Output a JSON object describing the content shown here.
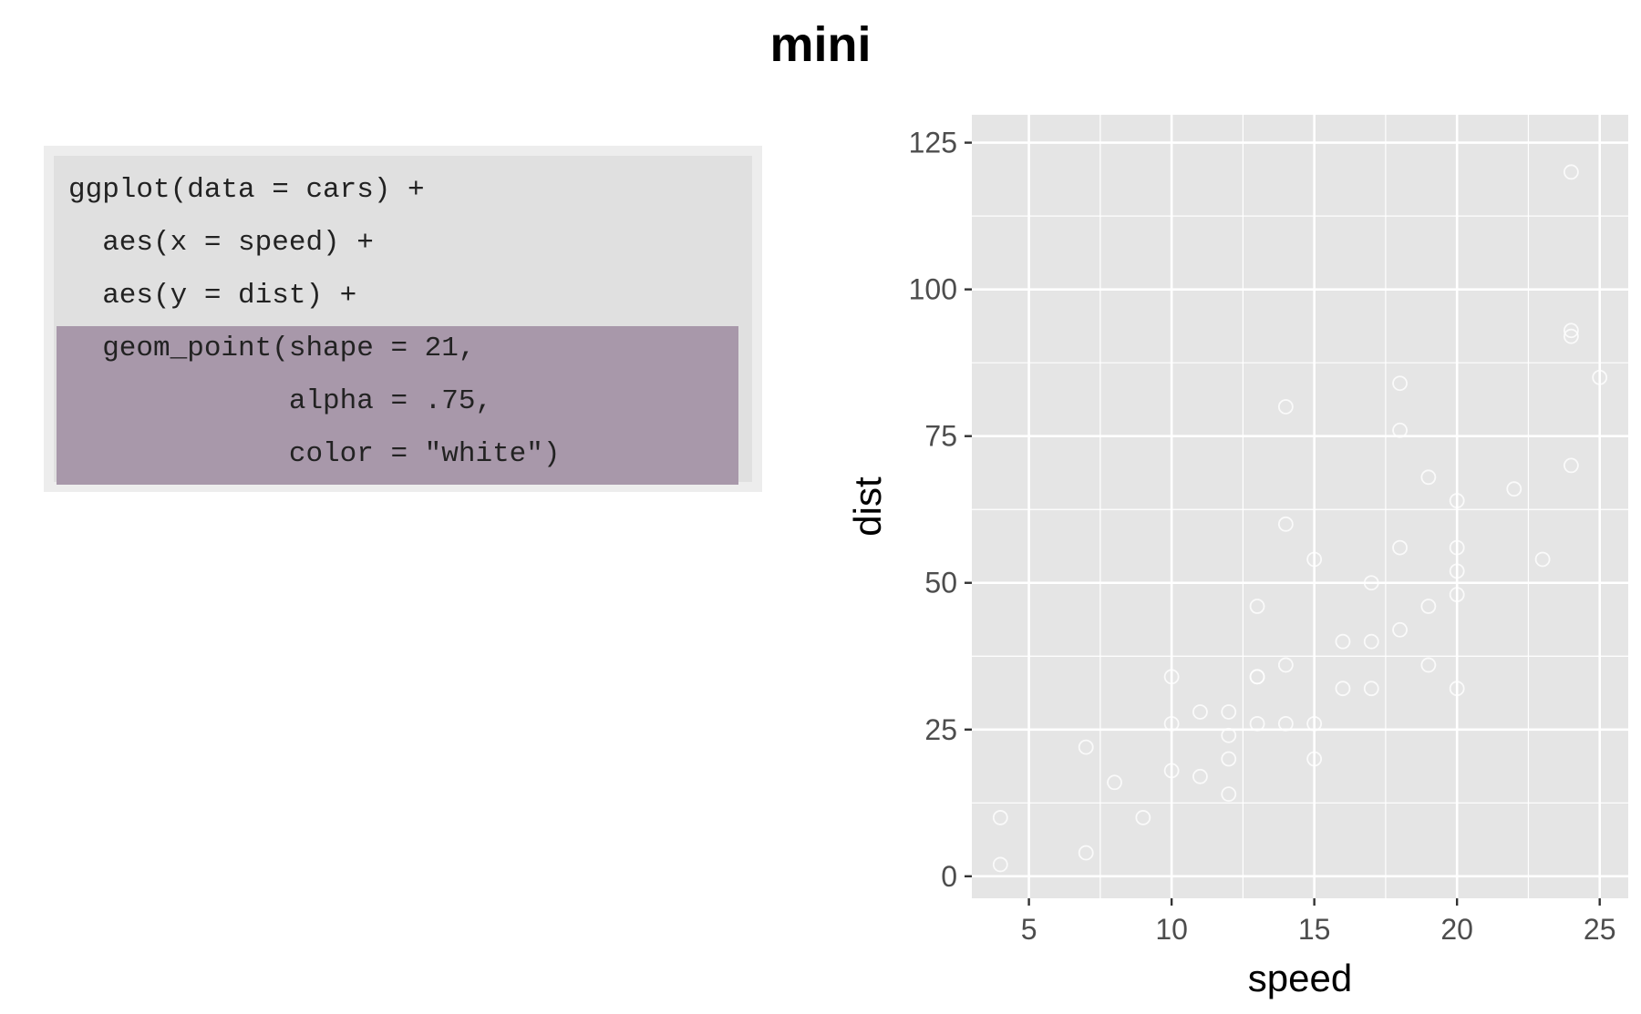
{
  "title": "mini",
  "code": {
    "lines": [
      "ggplot(data = cars) +",
      "  aes(x = speed) +",
      "  aes(y = dist) +",
      "  geom_point(shape = 21,",
      "             alpha = .75,",
      "             color = \"white\")"
    ],
    "highlighted_lines": [
      3,
      4,
      5
    ],
    "highlight_color": "#a898aa"
  },
  "chart_data": {
    "type": "scatter",
    "xlabel": "speed",
    "ylabel": "dist",
    "xlim": [
      3.0,
      26.0
    ],
    "ylim": [
      -3.75,
      129.75
    ],
    "x_ticks": [
      5,
      10,
      15,
      20,
      25
    ],
    "y_ticks": [
      0,
      25,
      50,
      75,
      100,
      125
    ],
    "panel_background": "#e5e5e5",
    "grid_color": "#ffffff",
    "point_color": "#ffffff",
    "point_shape": "open-circle",
    "points": [
      {
        "x": 4,
        "y": 2
      },
      {
        "x": 4,
        "y": 10
      },
      {
        "x": 7,
        "y": 4
      },
      {
        "x": 7,
        "y": 22
      },
      {
        "x": 8,
        "y": 16
      },
      {
        "x": 9,
        "y": 10
      },
      {
        "x": 10,
        "y": 18
      },
      {
        "x": 10,
        "y": 26
      },
      {
        "x": 10,
        "y": 34
      },
      {
        "x": 11,
        "y": 17
      },
      {
        "x": 11,
        "y": 28
      },
      {
        "x": 12,
        "y": 14
      },
      {
        "x": 12,
        "y": 20
      },
      {
        "x": 12,
        "y": 24
      },
      {
        "x": 12,
        "y": 28
      },
      {
        "x": 13,
        "y": 26
      },
      {
        "x": 13,
        "y": 34
      },
      {
        "x": 13,
        "y": 34
      },
      {
        "x": 13,
        "y": 46
      },
      {
        "x": 14,
        "y": 26
      },
      {
        "x": 14,
        "y": 36
      },
      {
        "x": 14,
        "y": 60
      },
      {
        "x": 14,
        "y": 80
      },
      {
        "x": 15,
        "y": 20
      },
      {
        "x": 15,
        "y": 26
      },
      {
        "x": 15,
        "y": 54
      },
      {
        "x": 16,
        "y": 32
      },
      {
        "x": 16,
        "y": 40
      },
      {
        "x": 17,
        "y": 32
      },
      {
        "x": 17,
        "y": 40
      },
      {
        "x": 17,
        "y": 50
      },
      {
        "x": 18,
        "y": 42
      },
      {
        "x": 18,
        "y": 56
      },
      {
        "x": 18,
        "y": 76
      },
      {
        "x": 18,
        "y": 84
      },
      {
        "x": 19,
        "y": 36
      },
      {
        "x": 19,
        "y": 46
      },
      {
        "x": 19,
        "y": 68
      },
      {
        "x": 20,
        "y": 32
      },
      {
        "x": 20,
        "y": 48
      },
      {
        "x": 20,
        "y": 52
      },
      {
        "x": 20,
        "y": 56
      },
      {
        "x": 20,
        "y": 64
      },
      {
        "x": 22,
        "y": 66
      },
      {
        "x": 23,
        "y": 54
      },
      {
        "x": 24,
        "y": 70
      },
      {
        "x": 24,
        "y": 92
      },
      {
        "x": 24,
        "y": 93
      },
      {
        "x": 24,
        "y": 120
      },
      {
        "x": 25,
        "y": 85
      }
    ]
  }
}
